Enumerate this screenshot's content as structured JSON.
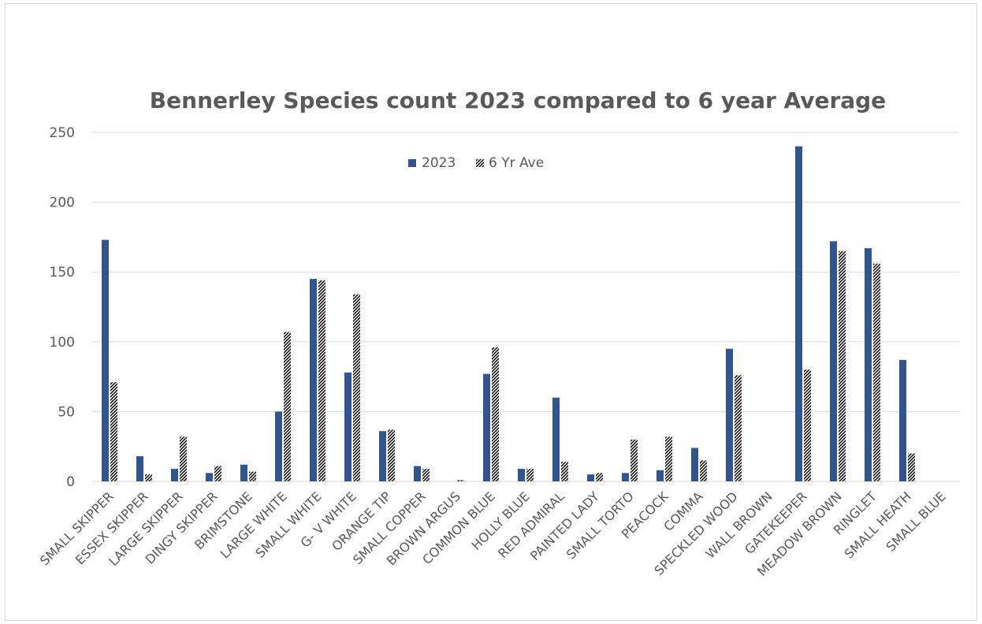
{
  "chart_data": {
    "type": "bar",
    "title": "Bennerley Species count 2023 compared to 6 year Average",
    "xlabel": "",
    "ylabel": "",
    "ylim": [
      0,
      250
    ],
    "yticks": [
      0,
      50,
      100,
      150,
      200,
      250
    ],
    "grid": true,
    "legend_position": "top-center",
    "categories": [
      "SMALL SKIPPER",
      "ESSEX SKIPPER",
      "LARGE SKIPPER",
      "DINGY SKIPPER",
      "BRIMSTONE",
      "LARGE WHITE",
      "SMALL WHITE",
      "G- V WHITE",
      "ORANGE TIP",
      "SMALL COPPER",
      "BROWN ARGUS",
      "COMMON BLUE",
      "HOLLY BLUE",
      "RED ADMIRAL",
      "PAINTED LADY",
      "SMALL TORTO",
      "PEACOCK",
      "COMMA",
      "SPECKLED WOOD",
      "WALL BROWN",
      "GATEKEEPER",
      "MEADOW BROWN",
      "RINGLET",
      "SMALL  HEATH",
      "SMALL BLUE"
    ],
    "series": [
      {
        "name": "2023",
        "color": "#2f5597",
        "pattern": "solid",
        "values": [
          173,
          18,
          9,
          6,
          12,
          50,
          145,
          78,
          36,
          11,
          0,
          77,
          9,
          60,
          5,
          6,
          8,
          24,
          95,
          0,
          240,
          172,
          167,
          87,
          0
        ]
      },
      {
        "name": "6 Yr Ave",
        "color": "#000000",
        "pattern": "dense-hatch",
        "values": [
          71,
          5,
          32,
          11,
          7,
          107,
          144,
          134,
          37,
          9,
          1,
          96,
          9,
          14,
          6,
          30,
          32,
          15,
          76,
          0,
          80,
          165,
          156,
          20,
          0
        ]
      }
    ]
  }
}
